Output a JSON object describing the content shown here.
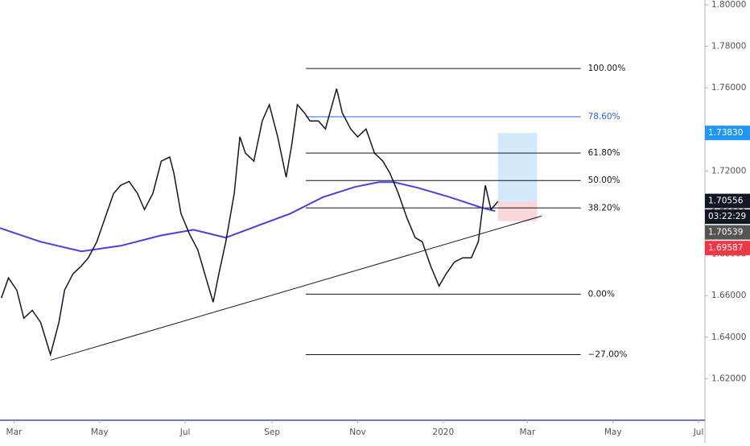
{
  "chart_data": {
    "type": "line",
    "xlim": [
      -10,
      492
    ],
    "ylim": [
      1.6,
      1.8023
    ],
    "xticks": [
      {
        "value": 0,
        "label": "Mar"
      },
      {
        "value": 61,
        "label": "May"
      },
      {
        "value": 122,
        "label": "Jul"
      },
      {
        "value": 184,
        "label": "Sep"
      },
      {
        "value": 245,
        "label": "Nov"
      },
      {
        "value": 306,
        "label": "2020"
      },
      {
        "value": 366,
        "label": "Mar"
      },
      {
        "value": 427,
        "label": "May"
      },
      {
        "value": 488,
        "label": "Jul"
      }
    ],
    "yticks": [
      {
        "value": 1.62,
        "label": "1.62000"
      },
      {
        "value": 1.64,
        "label": "1.64000"
      },
      {
        "value": 1.66,
        "label": "1.66000"
      },
      {
        "value": 1.68,
        "label": "1.68000"
      },
      {
        "value": 1.7,
        "label": "1.70000"
      },
      {
        "value": 1.72,
        "label": "1.72000"
      },
      {
        "value": 1.74,
        "label": "1.74000"
      },
      {
        "value": 1.76,
        "label": "1.76000"
      },
      {
        "value": 1.78,
        "label": "1.78000"
      },
      {
        "value": 1.8,
        "label": "1.80000"
      }
    ],
    "price": {
      "color": "#131722",
      "x": [
        -9,
        -4,
        2,
        7,
        13,
        19,
        26,
        32,
        36,
        42,
        48,
        53,
        59,
        65,
        71,
        76,
        82,
        88,
        93,
        99,
        105,
        111,
        114,
        119,
        125,
        131,
        136,
        142,
        146,
        151,
        157,
        161,
        165,
        171,
        177,
        182,
        188,
        194,
        198,
        202,
        207,
        211,
        217,
        222,
        230,
        234,
        240,
        245,
        251,
        257,
        263,
        268,
        274,
        280,
        286,
        291,
        297,
        303,
        308,
        314,
        320,
        326,
        331,
        336,
        340,
        345
      ],
      "values": [
        1.6588,
        1.6685,
        1.6626,
        1.6491,
        1.6529,
        1.6471,
        1.6316,
        1.6471,
        1.6626,
        1.6704,
        1.6743,
        1.6782,
        1.6859,
        1.6976,
        1.7092,
        1.7131,
        1.715,
        1.7092,
        1.7014,
        1.7092,
        1.7247,
        1.7267,
        1.7189,
        1.6995,
        1.6898,
        1.682,
        1.6704,
        1.6568,
        1.6704,
        1.6859,
        1.7092,
        1.7364,
        1.7286,
        1.7247,
        1.7441,
        1.7519,
        1.7364,
        1.717,
        1.7325,
        1.7519,
        1.748,
        1.7441,
        1.7441,
        1.7402,
        1.7596,
        1.748,
        1.7402,
        1.7364,
        1.7402,
        1.7286,
        1.7247,
        1.7189,
        1.7092,
        1.6976,
        1.6879,
        1.6859,
        1.6743,
        1.6646,
        1.6704,
        1.6762,
        1.6782,
        1.6782,
        1.6859,
        1.7131,
        1.7014,
        1.7053
      ]
    },
    "ma": {
      "color": "#4a3fe0",
      "x": [
        -10,
        19,
        48,
        76,
        105,
        128,
        151,
        174,
        197,
        220,
        243,
        260,
        271,
        288,
        311,
        334,
        343
      ],
      "values": [
        1.6925,
        1.6859,
        1.6813,
        1.684,
        1.689,
        1.6917,
        1.6879,
        1.6937,
        1.6995,
        1.7073,
        1.7123,
        1.7146,
        1.7146,
        1.7119,
        1.7073,
        1.7022,
        1.7007
      ]
    },
    "fib_range": [
      208,
      404
    ],
    "fib_levels": [
      {
        "label": "100.00%",
        "price": 1.7693,
        "color": "#131722"
      },
      {
        "label": "78.60%",
        "price": 1.7461,
        "color": "#2962ff"
      },
      {
        "label": "61.80%",
        "price": 1.7286,
        "color": "#131722"
      },
      {
        "label": "50.00%",
        "price": 1.7154,
        "color": "#131722"
      },
      {
        "label": "38.20%",
        "price": 1.7022,
        "color": "#131722"
      },
      {
        "label": "0.00%",
        "price": 1.6607,
        "color": "#131722"
      },
      {
        "label": "−27.00%",
        "price": 1.6316,
        "color": "#131722"
      }
    ],
    "trendline": {
      "x": [
        26,
        376
      ],
      "values": [
        1.6289,
        1.6983
      ]
    },
    "position": {
      "x": [
        345,
        373
      ],
      "target": 1.7383,
      "entry": 1.70539,
      "stop": 1.69587
    },
    "price_labels": [
      {
        "value": 1.7383,
        "label": "1.73830",
        "bg": "#2196f3"
      },
      {
        "value": 1.70556,
        "label": "1.70556",
        "bg": "#131722"
      },
      {
        "label": "03:22:29",
        "bg": "#131722"
      },
      {
        "value": 1.70539,
        "label": "1.70539",
        "bg": "#555555"
      },
      {
        "value": 1.69587,
        "label": "1.69587",
        "bg": "#f23645"
      }
    ]
  }
}
